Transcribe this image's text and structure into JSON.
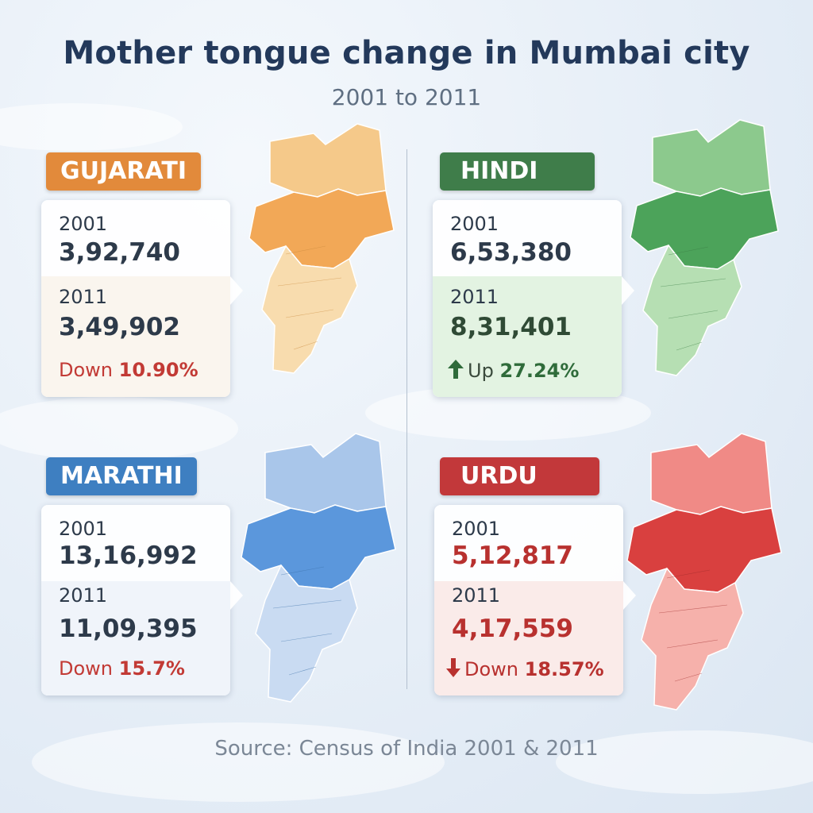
{
  "title": "Mother tongue change in Mumbai city",
  "subtitle": "2001 to 2011",
  "source": "Source: Census of India 2001 & 2011",
  "panels": {
    "gujarati": {
      "label": "GUJARATI",
      "year1": "2001",
      "value1": "3,92,740",
      "year2": "2011",
      "value2": "3,49,902",
      "change_word": "Down",
      "change_pct": "10.90%",
      "color": "#e28a3b",
      "map_colors": [
        "#f5c98a",
        "#f2a857",
        "#f8dcae"
      ]
    },
    "hindi": {
      "label": "HINDI",
      "year1": "2001",
      "value1": "6,53,380",
      "year2": "2011",
      "value2": "8,31,401",
      "change_word": "Up",
      "change_pct": "27.24%",
      "color": "#3f7d4a",
      "map_colors": [
        "#8cc98d",
        "#4ca35a",
        "#b6dfb3"
      ]
    },
    "marathi": {
      "label": "MARATHI",
      "year1": "2001",
      "value1": "13,16,992",
      "year2": "2011",
      "value2": "11,09,395",
      "change_word": "Down",
      "change_pct": "15.7%",
      "color": "#3e7fc1",
      "map_colors": [
        "#a9c6ea",
        "#5b97dc",
        "#c9dbf2"
      ]
    },
    "urdu": {
      "label": "URDU",
      "year1": "2001",
      "value1": "5,12,817",
      "year2": "2011",
      "value2": "4,17,559",
      "change_word": "Down",
      "change_pct": "18.57%",
      "color": "#c2383a",
      "map_colors": [
        "#f08a86",
        "#d9403f",
        "#f6b1ab"
      ]
    }
  }
}
